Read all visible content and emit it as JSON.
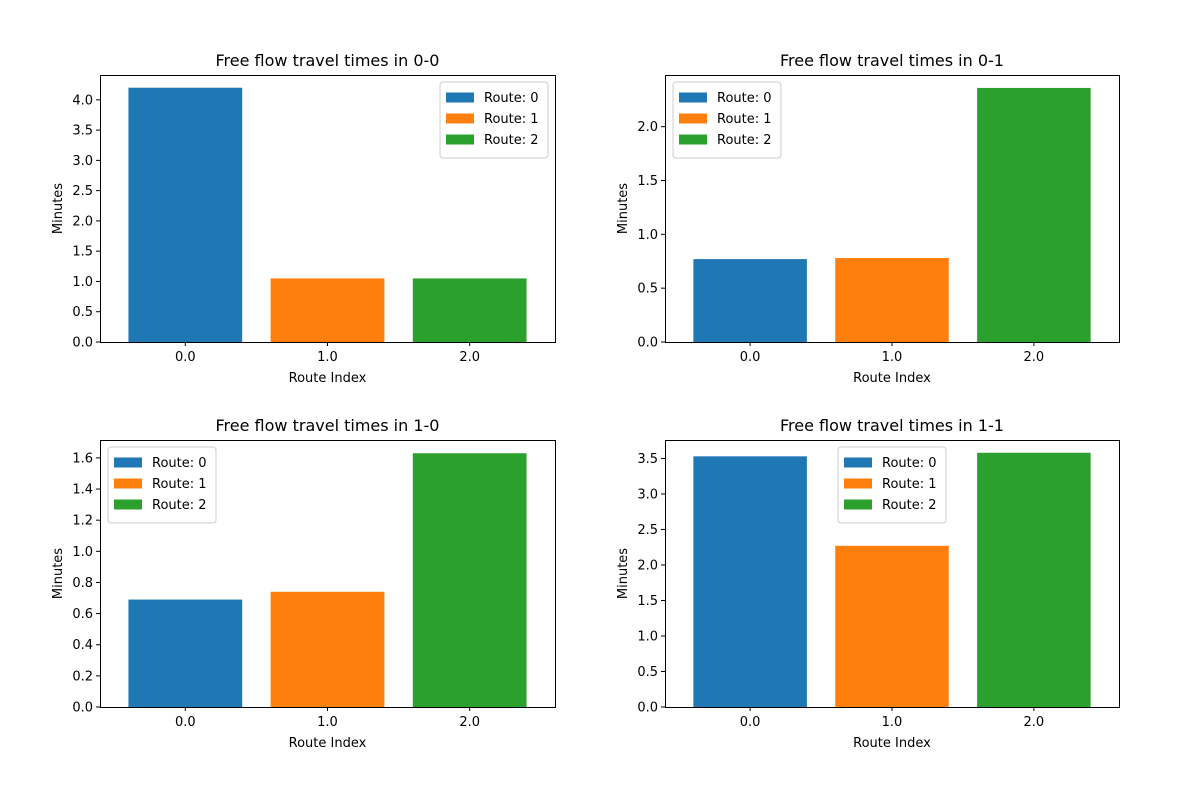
{
  "figure": {
    "background": "#ffffff"
  },
  "chart_data": [
    {
      "type": "bar",
      "title": "Free flow travel times in 0-0",
      "xlabel": "Route Index",
      "ylabel": "Minutes",
      "x": [
        0.0,
        1.0,
        2.0
      ],
      "x_tick_labels": [
        "0.0",
        "1.0",
        "2.0"
      ],
      "series": [
        {
          "name": "Route: 0",
          "x": 0.0,
          "value": 4.2,
          "color": "#1f77b4"
        },
        {
          "name": "Route: 1",
          "x": 1.0,
          "value": 1.05,
          "color": "#ff7f0e"
        },
        {
          "name": "Route: 2",
          "x": 2.0,
          "value": 1.05,
          "color": "#2ca02c"
        }
      ],
      "ylim": [
        0,
        4.41
      ],
      "y_ticks": [
        0.0,
        0.5,
        1.0,
        1.5,
        2.0,
        2.5,
        3.0,
        3.5,
        4.0
      ],
      "y_tick_labels": [
        "0.0",
        "0.5",
        "1.0",
        "1.5",
        "2.0",
        "2.5",
        "3.0",
        "3.5",
        "4.0"
      ],
      "legend_position": "top-right",
      "grid": false
    },
    {
      "type": "bar",
      "title": "Free flow travel times in 0-1",
      "xlabel": "Route Index",
      "ylabel": "Minutes",
      "x": [
        0.0,
        1.0,
        2.0
      ],
      "x_tick_labels": [
        "0.0",
        "1.0",
        "2.0"
      ],
      "series": [
        {
          "name": "Route: 0",
          "x": 0.0,
          "value": 0.77,
          "color": "#1f77b4"
        },
        {
          "name": "Route: 1",
          "x": 1.0,
          "value": 0.78,
          "color": "#ff7f0e"
        },
        {
          "name": "Route: 2",
          "x": 2.0,
          "value": 2.36,
          "color": "#2ca02c"
        }
      ],
      "ylim": [
        0,
        2.48
      ],
      "y_ticks": [
        0.0,
        0.5,
        1.0,
        1.5,
        2.0
      ],
      "y_tick_labels": [
        "0.0",
        "0.5",
        "1.0",
        "1.5",
        "2.0"
      ],
      "legend_position": "top-left",
      "grid": false
    },
    {
      "type": "bar",
      "title": "Free flow travel times in 1-0",
      "xlabel": "Route Index",
      "ylabel": "Minutes",
      "x": [
        0.0,
        1.0,
        2.0
      ],
      "x_tick_labels": [
        "0.0",
        "1.0",
        "2.0"
      ],
      "series": [
        {
          "name": "Route: 0",
          "x": 0.0,
          "value": 0.69,
          "color": "#1f77b4"
        },
        {
          "name": "Route: 1",
          "x": 1.0,
          "value": 0.74,
          "color": "#ff7f0e"
        },
        {
          "name": "Route: 2",
          "x": 2.0,
          "value": 1.63,
          "color": "#2ca02c"
        }
      ],
      "ylim": [
        0,
        1.715
      ],
      "y_ticks": [
        0.0,
        0.2,
        0.4,
        0.6,
        0.8,
        1.0,
        1.2,
        1.4,
        1.6
      ],
      "y_tick_labels": [
        "0.0",
        "0.2",
        "0.4",
        "0.6",
        "0.8",
        "1.0",
        "1.2",
        "1.4",
        "1.6"
      ],
      "legend_position": "top-left",
      "grid": false
    },
    {
      "type": "bar",
      "title": "Free flow travel times in 1-1",
      "xlabel": "Route Index",
      "ylabel": "Minutes",
      "x": [
        0.0,
        1.0,
        2.0
      ],
      "x_tick_labels": [
        "0.0",
        "1.0",
        "2.0"
      ],
      "series": [
        {
          "name": "Route: 0",
          "x": 0.0,
          "value": 3.53,
          "color": "#1f77b4"
        },
        {
          "name": "Route: 1",
          "x": 1.0,
          "value": 2.27,
          "color": "#ff7f0e"
        },
        {
          "name": "Route: 2",
          "x": 2.0,
          "value": 3.58,
          "color": "#2ca02c"
        }
      ],
      "ylim": [
        0,
        3.76
      ],
      "y_ticks": [
        0.0,
        0.5,
        1.0,
        1.5,
        2.0,
        2.5,
        3.0,
        3.5
      ],
      "y_tick_labels": [
        "0.0",
        "0.5",
        "1.0",
        "1.5",
        "2.0",
        "2.5",
        "3.0",
        "3.5"
      ],
      "legend_position": "top-center",
      "grid": false
    }
  ]
}
